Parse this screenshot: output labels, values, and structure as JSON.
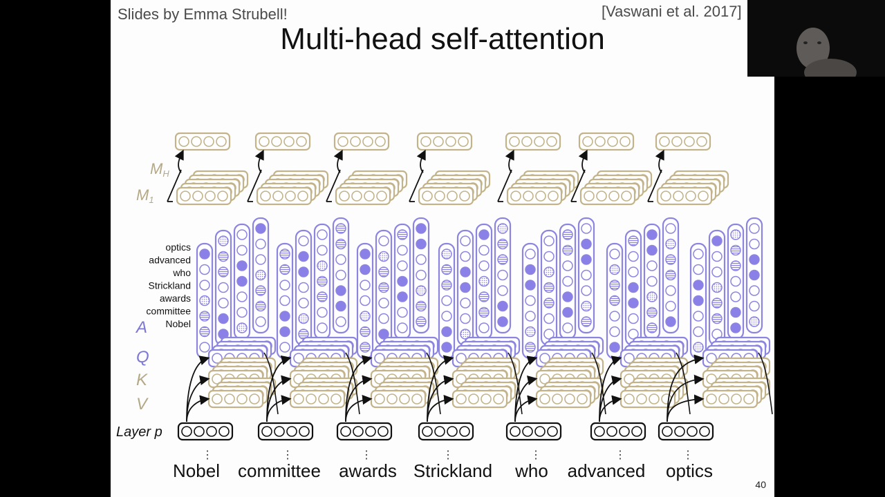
{
  "slide": {
    "credit": "Slides by Emma Strubell!",
    "citation": "[Vaswani et al. 2017]",
    "title": "Multi-head self-attention",
    "page_number": "40"
  },
  "diagram": {
    "label_mh": "M",
    "label_mh_sub": "H",
    "label_m1": "M",
    "label_m1_sub": "1",
    "label_a": "A",
    "label_q": "Q",
    "label_k": "K",
    "label_v": "V",
    "label_layer": "Layer p",
    "ellipsis": "⋮",
    "attention_row_labels": [
      "optics",
      "advanced",
      "who",
      "Strickland",
      "awards",
      "committee",
      "Nobel"
    ],
    "words": [
      "Nobel",
      "committee",
      "awards",
      "Strickland",
      "who",
      "advanced",
      "optics"
    ]
  },
  "colors": {
    "tan": "#c2b38a",
    "purple": "#8c85e0",
    "purple_fill": "#8a80e8",
    "black": "#111111",
    "label_tan": "#b4a986",
    "label_purple": "#7d77d6"
  },
  "webcam": {
    "content": "presenter-video"
  }
}
